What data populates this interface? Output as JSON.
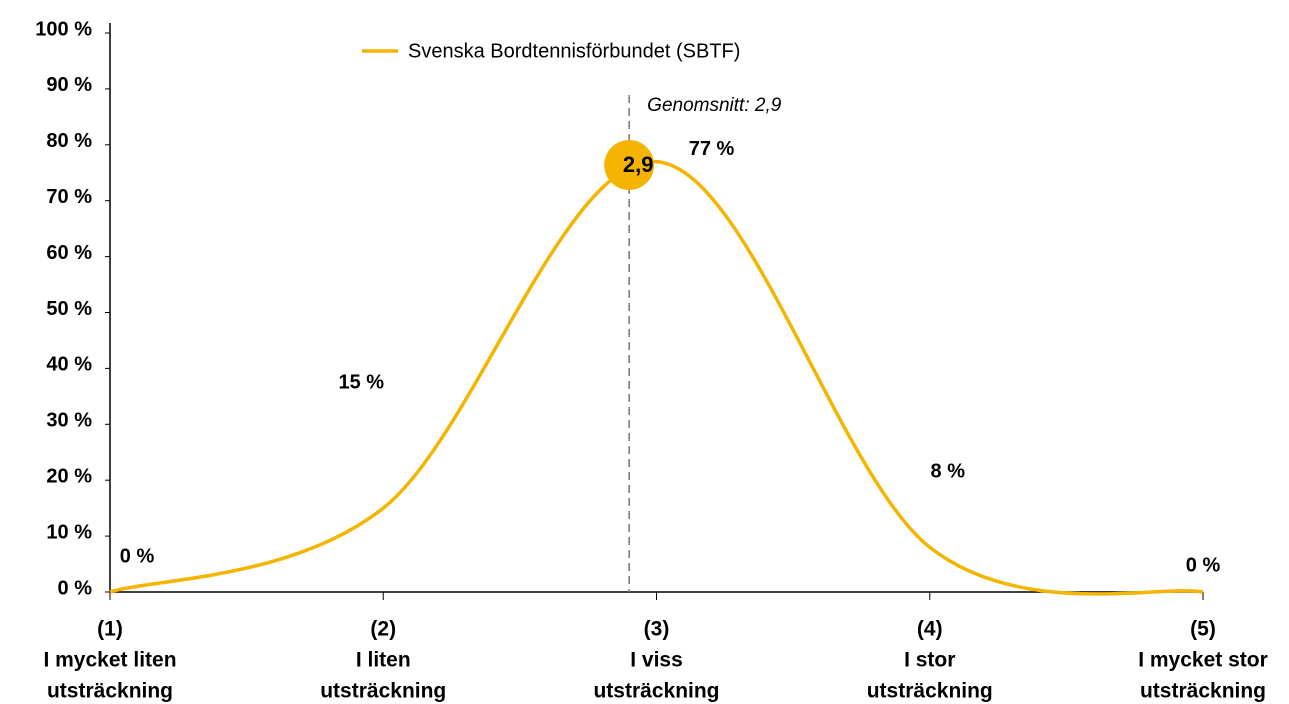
{
  "chart_data": {
    "type": "line",
    "categories": [
      [
        "(1)",
        "I mycket liten",
        "utsträckning"
      ],
      [
        "(2)",
        "I liten",
        "utsträckning"
      ],
      [
        "(3)",
        "I viss",
        "utsträckning"
      ],
      [
        "(4)",
        "I stor",
        "utsträckning"
      ],
      [
        "(5)",
        "I mycket stor",
        "utsträckning"
      ]
    ],
    "series": [
      {
        "name": "Svenska Bordtennisförbundet (SBTF)",
        "color": "#f5b400",
        "values": [
          0,
          15,
          77,
          8,
          0
        ],
        "value_labels": [
          "0 %",
          "15 %",
          "77 %",
          "8 %",
          "0 %"
        ]
      }
    ],
    "ylim": [
      0,
      100
    ],
    "yticks": [
      {
        "value": 0,
        "label": "0 %"
      },
      {
        "value": 10,
        "label": "10 %"
      },
      {
        "value": 20,
        "label": "20 %"
      },
      {
        "value": 30,
        "label": "30 %"
      },
      {
        "value": 40,
        "label": "40 %"
      },
      {
        "value": 50,
        "label": "50 %"
      },
      {
        "value": 60,
        "label": "60 %"
      },
      {
        "value": 70,
        "label": "70 %"
      },
      {
        "value": 80,
        "label": "80 %"
      },
      {
        "value": 90,
        "label": "90 %"
      },
      {
        "value": 100,
        "label": "100 %"
      }
    ],
    "mean": {
      "value": 2.9,
      "label": "Genomsnitt: 2,9",
      "marker_label": "2,9"
    },
    "legend": "top"
  }
}
